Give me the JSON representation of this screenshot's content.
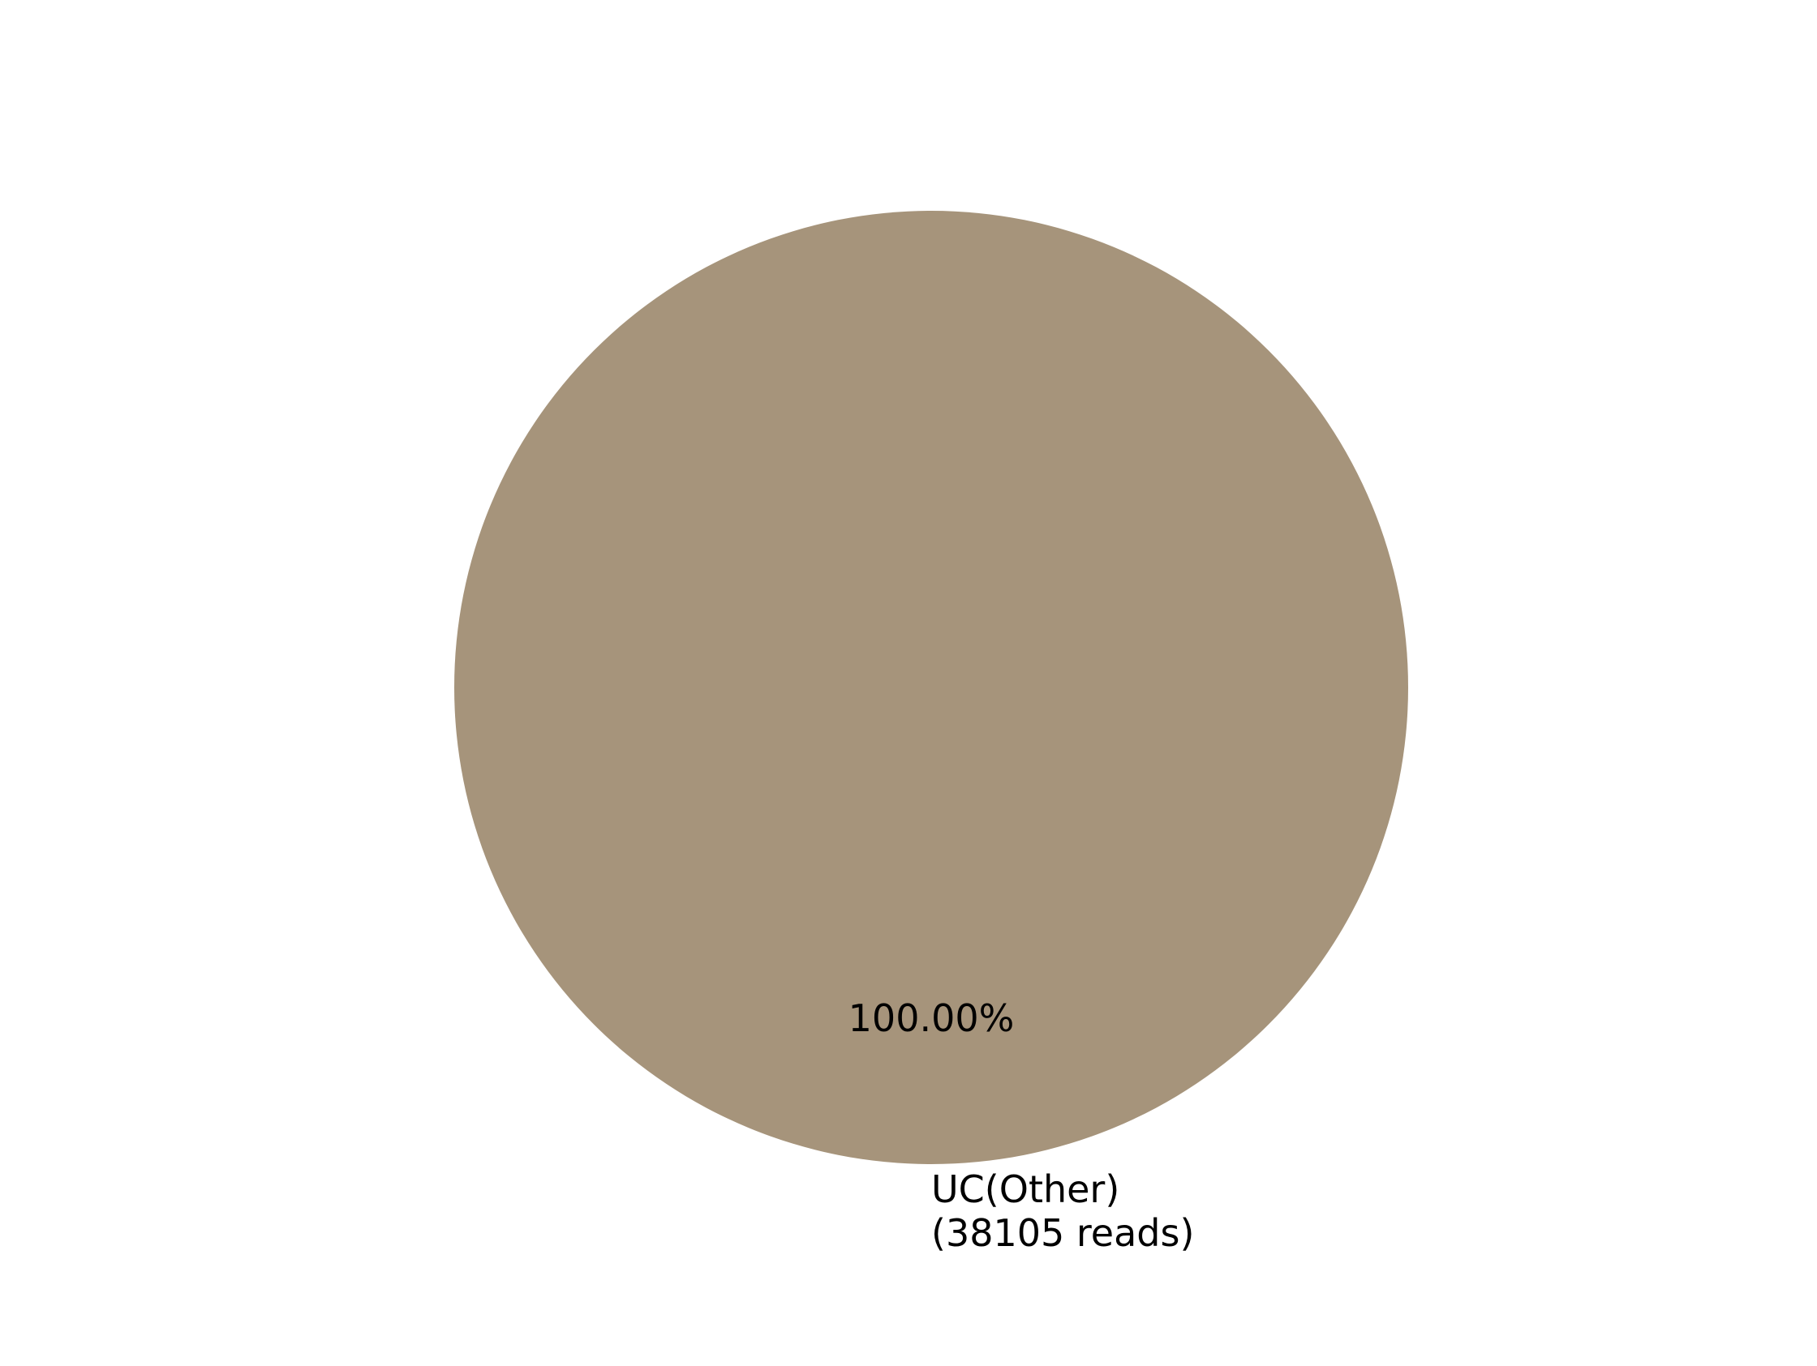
{
  "chart_data": {
    "type": "pie",
    "slices": [
      {
        "label_line1": "UC(Other)",
        "label_line2": "(38105 reads)",
        "reads": 38105,
        "percent": 100.0,
        "percent_label": "100.00%",
        "color": "#a6947b"
      }
    ],
    "legend": "none"
  }
}
